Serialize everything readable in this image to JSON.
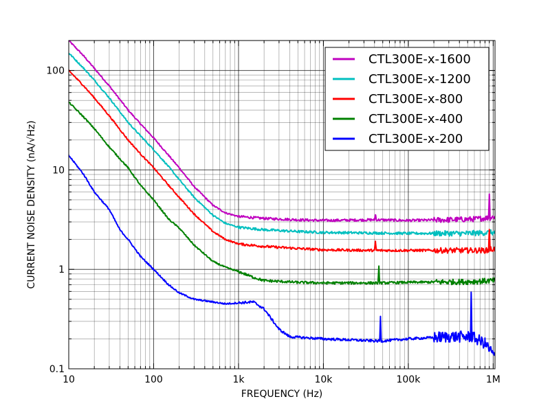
{
  "chart_data": {
    "type": "line",
    "title": "",
    "xlabel": "FREQUENCY (Hz)",
    "ylabel": "CURRENT NOISE DENSITY (nA/√Hz)",
    "xscale": "log",
    "yscale": "log",
    "xlim": [
      10,
      1050000
    ],
    "ylim": [
      0.1,
      200
    ],
    "grid": true,
    "legend_position": "top-right",
    "x_ticks": [
      {
        "value": 10,
        "label": "10"
      },
      {
        "value": 100,
        "label": "100"
      },
      {
        "value": 1000,
        "label": "1k"
      },
      {
        "value": 10000,
        "label": "10k"
      },
      {
        "value": 100000,
        "label": "100k"
      },
      {
        "value": 1000000,
        "label": "1M"
      }
    ],
    "y_ticks": [
      {
        "value": 0.1,
        "label": "0.1"
      },
      {
        "value": 1,
        "label": "1"
      },
      {
        "value": 10,
        "label": "10"
      },
      {
        "value": 100,
        "label": "100"
      }
    ],
    "series": [
      {
        "name": "CTL300E-x-1600",
        "color": "#bf00bf",
        "points": [
          [
            10,
            200
          ],
          [
            15,
            140
          ],
          [
            20,
            105
          ],
          [
            30,
            70
          ],
          [
            50,
            40
          ],
          [
            70,
            29
          ],
          [
            100,
            21
          ],
          [
            150,
            14
          ],
          [
            200,
            10.5
          ],
          [
            300,
            6.8
          ],
          [
            500,
            4.4
          ],
          [
            700,
            3.7
          ],
          [
            1000,
            3.4
          ],
          [
            2000,
            3.25
          ],
          [
            5000,
            3.15
          ],
          [
            10000,
            3.1
          ],
          [
            40000,
            3.15
          ],
          [
            41000,
            3.6
          ],
          [
            42000,
            3.15
          ],
          [
            100000,
            3.1
          ],
          [
            300000,
            3.15
          ],
          [
            600000,
            3.2
          ],
          [
            880000,
            3.3
          ],
          [
            900000,
            5.8
          ],
          [
            920000,
            3.3
          ],
          [
            1050000,
            3.4
          ]
        ]
      },
      {
        "name": "CTL300E-x-1200",
        "color": "#00bfbf",
        "points": [
          [
            10,
            150
          ],
          [
            15,
            105
          ],
          [
            20,
            80
          ],
          [
            30,
            53
          ],
          [
            50,
            30
          ],
          [
            70,
            22
          ],
          [
            100,
            16
          ],
          [
            150,
            10.8
          ],
          [
            200,
            8
          ],
          [
            300,
            5.3
          ],
          [
            500,
            3.5
          ],
          [
            700,
            2.9
          ],
          [
            1000,
            2.65
          ],
          [
            2000,
            2.5
          ],
          [
            5000,
            2.4
          ],
          [
            10000,
            2.35
          ],
          [
            100000,
            2.3
          ],
          [
            500000,
            2.3
          ],
          [
            1000000,
            2.35
          ],
          [
            1050000,
            2.35
          ]
        ]
      },
      {
        "name": "CTL300E-x-800",
        "color": "#ff0000",
        "points": [
          [
            10,
            100
          ],
          [
            15,
            70
          ],
          [
            20,
            53
          ],
          [
            30,
            35
          ],
          [
            50,
            20
          ],
          [
            70,
            14.5
          ],
          [
            100,
            10.5
          ],
          [
            150,
            7
          ],
          [
            200,
            5.3
          ],
          [
            300,
            3.6
          ],
          [
            500,
            2.4
          ],
          [
            700,
            2
          ],
          [
            1000,
            1.8
          ],
          [
            2000,
            1.7
          ],
          [
            5000,
            1.62
          ],
          [
            10000,
            1.57
          ],
          [
            40000,
            1.55
          ],
          [
            41000,
            1.9
          ],
          [
            42000,
            1.55
          ],
          [
            100000,
            1.55
          ],
          [
            500000,
            1.55
          ],
          [
            880000,
            1.55
          ],
          [
            900000,
            2.6
          ],
          [
            920000,
            1.6
          ],
          [
            1050000,
            1.6
          ]
        ]
      },
      {
        "name": "CTL300E-x-400",
        "color": "#008000",
        "points": [
          [
            10,
            48
          ],
          [
            15,
            34
          ],
          [
            20,
            26
          ],
          [
            30,
            17
          ],
          [
            50,
            10.5
          ],
          [
            70,
            7
          ],
          [
            100,
            5
          ],
          [
            150,
            3.2
          ],
          [
            200,
            2.6
          ],
          [
            300,
            1.75
          ],
          [
            500,
            1.2
          ],
          [
            700,
            1.05
          ],
          [
            1000,
            0.95
          ],
          [
            1500,
            0.83
          ],
          [
            2000,
            0.77
          ],
          [
            5000,
            0.74
          ],
          [
            10000,
            0.73
          ],
          [
            44000,
            0.73
          ],
          [
            45000,
            1.05
          ],
          [
            46000,
            0.73
          ],
          [
            100000,
            0.74
          ],
          [
            500000,
            0.75
          ],
          [
            1000000,
            0.77
          ],
          [
            1050000,
            0.77
          ]
        ]
      },
      {
        "name": "CTL300E-x-200",
        "color": "#0000ff",
        "points": [
          [
            10,
            14
          ],
          [
            15,
            9
          ],
          [
            20,
            6
          ],
          [
            30,
            4
          ],
          [
            40,
            2.5
          ],
          [
            50,
            2
          ],
          [
            70,
            1.35
          ],
          [
            100,
            1
          ],
          [
            150,
            0.7
          ],
          [
            200,
            0.58
          ],
          [
            300,
            0.5
          ],
          [
            500,
            0.47
          ],
          [
            700,
            0.45
          ],
          [
            1000,
            0.46
          ],
          [
            1500,
            0.47
          ],
          [
            2000,
            0.4
          ],
          [
            3000,
            0.25
          ],
          [
            4000,
            0.21
          ],
          [
            10000,
            0.2
          ],
          [
            46000,
            0.19
          ],
          [
            47000,
            0.33
          ],
          [
            48000,
            0.19
          ],
          [
            100000,
            0.2
          ],
          [
            300000,
            0.21
          ],
          [
            540000,
            0.21
          ],
          [
            550000,
            0.62
          ],
          [
            560000,
            0.21
          ],
          [
            800000,
            0.18
          ],
          [
            1000000,
            0.14
          ],
          [
            1050000,
            0.13
          ]
        ]
      }
    ]
  }
}
